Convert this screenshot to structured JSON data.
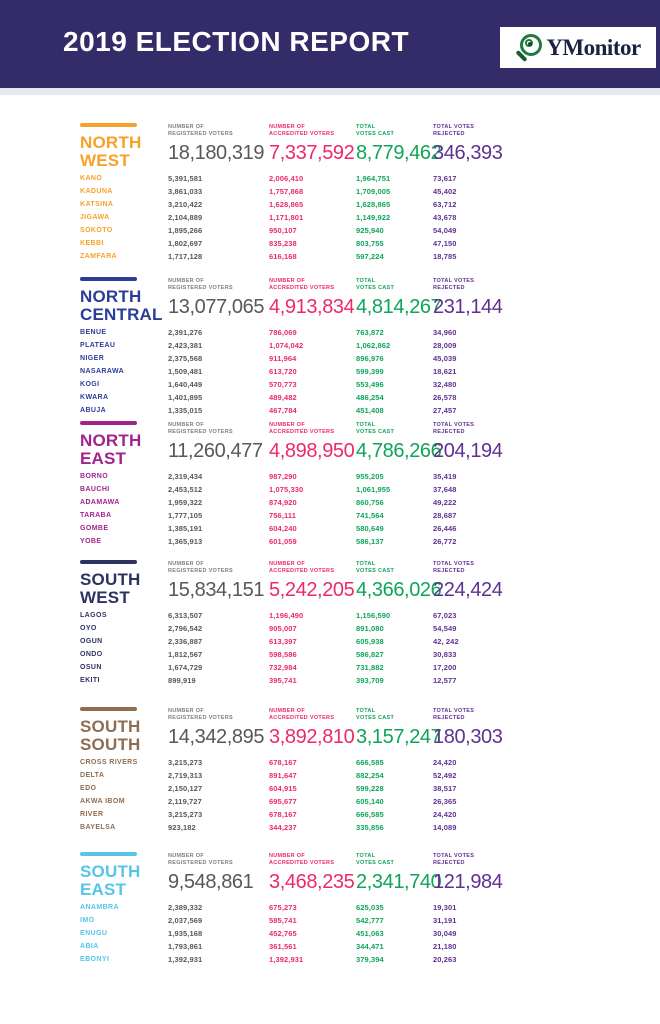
{
  "header": {
    "title": "2019 ELECTION REPORT",
    "banner_color": "#332c68",
    "logo": {
      "text": "YMonitor",
      "icon": "magnifier-target-icon",
      "ring_color": "#1f7a3d",
      "text_color": "#1c2342"
    }
  },
  "columns": [
    {
      "label1": "NUMBER  OF",
      "label2": "REGISTERED VOTERS",
      "color": "#58585a"
    },
    {
      "label1": "NUMBER OF",
      "label2": "ACCREDITED VOTERS",
      "color": "#ec2a67"
    },
    {
      "label1": "TOTAL",
      "label2": "VOTES CAST",
      "color": "#0fa558"
    },
    {
      "label1": "TOTAL  VOTES",
      "label2": "REJECTED",
      "color": "#5f3193"
    }
  ],
  "regions": [
    {
      "name_line1": "NORTH",
      "name_line2": "WEST",
      "color": "#f6a229",
      "totals": [
        "18,180,319",
        "7,337,592",
        "8,779,462",
        "346,393"
      ],
      "states": [
        {
          "name": "KANO",
          "values": [
            "5,391,581",
            "2,006,410",
            "1,964,751",
            "73,617"
          ]
        },
        {
          "name": "KADUNA",
          "values": [
            "3,861,033",
            "1,757,868",
            "1,709,005",
            "45,402"
          ]
        },
        {
          "name": "KATSINA",
          "values": [
            "3,210,422",
            "1,628,865",
            "1,628,865",
            "63,712"
          ]
        },
        {
          "name": "JIGAWA",
          "values": [
            "2,104,889",
            "1,171,801",
            "1,149,922",
            "43,678"
          ]
        },
        {
          "name": "SOKOTO",
          "values": [
            "1,895,266",
            "950,107",
            "925,940",
            "54,049"
          ]
        },
        {
          "name": "KEBBI",
          "values": [
            "1,802,697",
            "835,238",
            "803,755",
            "47,150"
          ]
        },
        {
          "name": "ZAMFARA",
          "values": [
            "1,717,128",
            "616,168",
            "597,224",
            "18,785"
          ]
        }
      ]
    },
    {
      "name_line1": "NORTH",
      "name_line2": "CENTRAL",
      "color": "#2b3d99",
      "totals": [
        "13,077,065",
        "4,913,834",
        "4,814,267",
        "231,144"
      ],
      "states": [
        {
          "name": "BENUE",
          "values": [
            "2,391,276",
            "786,069",
            "763,872",
            "34,960"
          ]
        },
        {
          "name": "PLATEAU",
          "values": [
            "2,423,381",
            "1,074,042",
            "1,062,862",
            "28,009"
          ]
        },
        {
          "name": "NIGER",
          "values": [
            "2,375,568",
            "911,964",
            "896,976",
            "45,039"
          ]
        },
        {
          "name": "NASARAWA",
          "values": [
            "1,509,481",
            "613,720",
            "599,399",
            "18,621"
          ]
        },
        {
          "name": "KOGI",
          "values": [
            "1,640,449",
            "570,773",
            "553,496",
            "32,480"
          ]
        },
        {
          "name": "KWARA",
          "values": [
            "1,401,895",
            "489,482",
            "486,254",
            "26,578"
          ]
        },
        {
          "name": "ABUJA",
          "values": [
            "1,335,015",
            "467,784",
            "451,408",
            "27,457"
          ]
        }
      ]
    },
    {
      "name_line1": "NORTH",
      "name_line2": "EAST",
      "color": "#a3238e",
      "totals": [
        "11,260,477",
        "4,898,950",
        "4,786,266",
        "204,194"
      ],
      "states": [
        {
          "name": "BORNO",
          "values": [
            "2,319,434",
            "987,290",
            "955,205",
            "35,419"
          ]
        },
        {
          "name": "BAUCHI",
          "values": [
            "2,453,512",
            "1,075,330",
            "1,061,955",
            "37,648"
          ]
        },
        {
          "name": "ADAMAWA",
          "values": [
            "1,959,322",
            "874,920",
            "860,756",
            "49,222"
          ]
        },
        {
          "name": "TARABA",
          "values": [
            "1,777,105",
            "756,111",
            "741,564",
            "28,687"
          ]
        },
        {
          "name": "GOMBE",
          "values": [
            "1,385,191",
            "604,240",
            "580,649",
            "26,446"
          ]
        },
        {
          "name": "YOBE",
          "values": [
            "1,365,913",
            "601,059",
            "586,137",
            "26,772"
          ]
        }
      ]
    },
    {
      "name_line1": "SOUTH",
      "name_line2": "WEST",
      "color": "#2e3263",
      "totals": [
        "15,834,151",
        "5,242,205",
        "4,366,026",
        "224,424"
      ],
      "states": [
        {
          "name": "LAGOS",
          "values": [
            "6,313,507",
            "1,196,490",
            "1,156,590",
            "67,023"
          ]
        },
        {
          "name": "OYO",
          "values": [
            "2,796,542",
            "905,007",
            "891,080",
            "54,549"
          ]
        },
        {
          "name": "OGUN",
          "values": [
            "2,336,887",
            "613,397",
            "605,938",
            "42, 242"
          ]
        },
        {
          "name": "ONDO",
          "values": [
            "1,812,567",
            "598,586",
            "586,827",
            "30,833"
          ]
        },
        {
          "name": "OSUN",
          "values": [
            "1,674,729",
            "732,984",
            "731,882",
            "17,200"
          ]
        },
        {
          "name": "EKITI",
          "values": [
            "899,919",
            "395,741",
            "393,709",
            "12,577"
          ]
        }
      ]
    },
    {
      "name_line1": "SOUTH",
      "name_line2": "SOUTH",
      "color": "#8f6d51",
      "totals": [
        "14,342,895",
        "3,892,810",
        "3,157,247",
        "180,303"
      ],
      "states": [
        {
          "name": "CROSS RIVERS",
          "values": [
            "3,215,273",
            "678,167",
            "666,585",
            "24,420"
          ]
        },
        {
          "name": "DELTA",
          "values": [
            "2,719,313",
            "891,647",
            "882,254",
            "52,492"
          ]
        },
        {
          "name": "EDO",
          "values": [
            "2,150,127",
            "604,915",
            "599,228",
            "38,517"
          ]
        },
        {
          "name": "AKWA IBOM",
          "values": [
            "2,119,727",
            "695,677",
            "605,140",
            "26,365"
          ]
        },
        {
          "name": "RIVER",
          "values": [
            "3,215,273",
            "678,167",
            "666,585",
            "24,420"
          ]
        },
        {
          "name": "BAYELSA",
          "values": [
            "923,182",
            "344,237",
            "335,856",
            "14,089"
          ]
        }
      ]
    },
    {
      "name_line1": "SOUTH",
      "name_line2": "EAST",
      "color": "#55c5e8",
      "totals": [
        "9,548,861",
        "3,468,235",
        "2,341,740",
        "121,984"
      ],
      "states": [
        {
          "name": "ANAMBRA",
          "values": [
            "2,389,332",
            "675,273",
            "625,035",
            "19,301"
          ]
        },
        {
          "name": "IMO",
          "values": [
            "2,037,569",
            "585,741",
            "542,777",
            "31,191"
          ]
        },
        {
          "name": "ENUGU",
          "values": [
            "1,935,168",
            "452,765",
            "451,063",
            "30,049"
          ]
        },
        {
          "name": "ABIA",
          "values": [
            "1,793,861",
            "361,561",
            "344,471",
            "21,180"
          ]
        },
        {
          "name": "EBONYI",
          "values": [
            "1,392,931",
            "1,392,931",
            "379,394",
            "20,263"
          ]
        }
      ]
    }
  ]
}
